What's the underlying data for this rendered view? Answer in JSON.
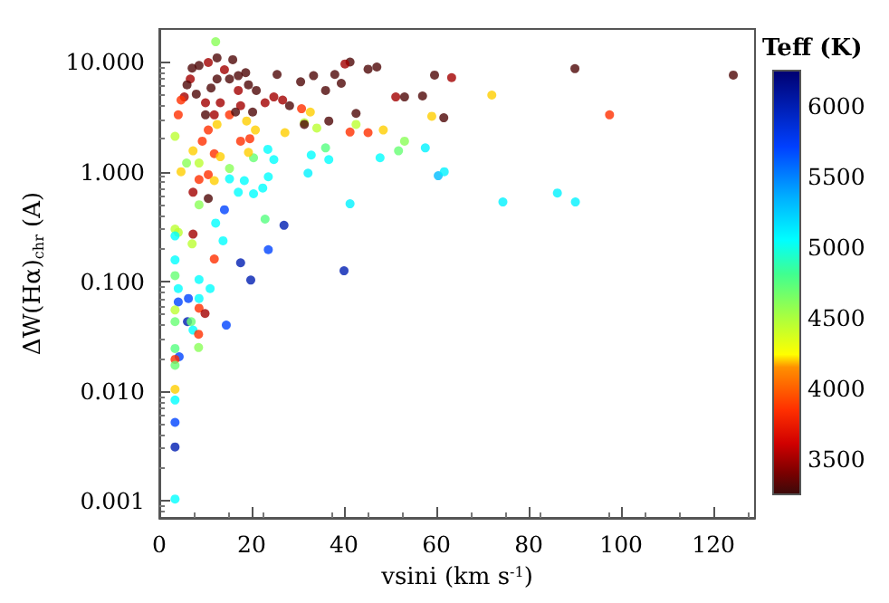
{
  "chart_data": {
    "type": "scatter",
    "xlabel": "vsini (km s$^{-1}$)",
    "ylabel": "ΔW(Hα)$_{chr}$ (A)",
    "clabel": "Teff (K)",
    "log": "y",
    "marker": "circle",
    "xlim": [
      0,
      129
    ],
    "ylim": [
      0.0007,
      20
    ],
    "xticks": [
      0,
      20,
      40,
      60,
      80,
      100,
      120
    ],
    "yticks": [
      {
        "value": 0.001,
        "label": "0.001"
      },
      {
        "value": 0.01,
        "label": "0.010"
      },
      {
        "value": 0.1,
        "label": "0.100"
      },
      {
        "value": 1,
        "label": "1.000"
      },
      {
        "value": 10,
        "label": "10.000"
      }
    ],
    "clim": [
      3250,
      6250
    ],
    "cticks": [
      3500,
      4000,
      4500,
      5000,
      5500,
      6000
    ],
    "x": [
      12.2,
      15.9,
      18.7,
      25.5,
      30.6,
      33.4,
      38,
      41.3,
      40.2,
      45.2,
      47.1,
      36,
      39.4,
      42.6,
      51.2,
      53.1,
      57,
      59.6,
      63.3,
      61.6,
      59,
      48.5,
      45.2,
      41.3,
      36.7,
      42.6,
      53.1,
      51.8,
      57.6,
      47.8,
      60.4,
      61.7,
      41.3,
      40,
      32.2,
      32.9,
      36,
      36.7,
      34.1,
      31.4,
      27.2,
      23.5,
      24.8,
      20.4,
      23.6,
      22.4,
      20.4,
      17.1,
      18.4,
      15.2,
      14.1,
      12.2,
      13.8,
      10.6,
      8.6,
      8.6,
      7.3,
      4.7,
      3.4,
      4.1,
      5.4,
      6.7,
      7.1,
      8.6,
      10.6,
      12.5,
      14.1,
      15.2,
      17.1,
      19.3,
      21,
      22.9,
      24.8,
      26.7,
      28.2,
      30.8,
      32.7,
      31.4,
      17.6,
      18.9,
      15.2,
      12.5,
      10.6,
      9.3,
      7.3,
      8.6,
      5.9,
      11.9,
      13.2,
      15.2,
      17.6,
      19.6,
      20.8,
      19.3,
      10.6,
      11.9,
      13.2,
      10,
      8,
      11.2,
      12.5,
      17.1,
      6,
      4.7,
      20.2,
      16.5,
      10,
      11.9,
      3.4,
      4.1,
      3.4,
      3.4,
      7.3,
      7.1,
      11.9,
      11,
      8.6,
      19.8,
      17.6,
      23.6,
      27,
      22.9,
      3.4,
      4.1,
      4.1,
      6.3,
      8.6,
      3.4,
      3.4,
      6.1,
      6.9,
      8.6,
      9.9,
      14.5,
      7.3,
      8.5,
      3.4,
      4.3,
      3.4,
      3.4,
      8.5,
      3.4,
      3.4,
      3.4,
      3.4,
      3.4,
      72,
      90,
      124.3,
      97.5,
      74.4,
      86.2,
      90.1
    ],
    "values": [
      15.3,
      10.5,
      8.0,
      7.7,
      6.6,
      7.5,
      7.7,
      10.0,
      9.6,
      8.6,
      9.0,
      5.5,
      6.4,
      3.4,
      4.8,
      4.8,
      4.9,
      7.6,
      7.2,
      3.1,
      3.2,
      2.4,
      2.27,
      2.3,
      2.9,
      2.7,
      1.9,
      1.55,
      1.65,
      1.34,
      0.92,
      1.0,
      0.51,
      0.125,
      0.97,
      1.42,
      1.65,
      1.29,
      2.5,
      2.8,
      2.27,
      1.6,
      1.29,
      1.34,
      0.9,
      0.71,
      0.63,
      0.65,
      0.83,
      0.86,
      0.45,
      0.34,
      0.235,
      0.57,
      0.5,
      0.85,
      0.65,
      1.0,
      2.1,
      3.3,
      4.8,
      7.0,
      8.8,
      9.3,
      9.9,
      10.9,
      8.5,
      7.0,
      5.5,
      6.2,
      5.5,
      4.25,
      4.8,
      4.5,
      4.0,
      3.75,
      3.5,
      2.7,
      4.0,
      2.9,
      3.3,
      2.7,
      2.4,
      1.9,
      1.55,
      1.2,
      1.2,
      1.46,
      1.37,
      1.07,
      1.9,
      2.0,
      2.4,
      1.5,
      0.94,
      0.83,
      4.25,
      4.25,
      5.1,
      5.8,
      7.0,
      7.5,
      6.2,
      4.5,
      3.5,
      3.5,
      3.3,
      3.3,
      0.3,
      0.28,
      0.26,
      0.157,
      0.27,
      0.22,
      0.16,
      0.086,
      0.104,
      0.103,
      0.148,
      0.195,
      0.325,
      0.37,
      0.113,
      0.086,
      0.065,
      0.07,
      0.07,
      0.055,
      0.043,
      0.043,
      0.043,
      0.057,
      0.051,
      0.04,
      0.036,
      0.033,
      0.0245,
      0.0206,
      0.0195,
      0.0172,
      0.025,
      0.0104,
      0.0083,
      0.0052,
      0.0031,
      0.00104,
      5.0,
      8.7,
      7.6,
      3.3,
      0.53,
      0.64,
      0.53
    ],
    "cvalues": [
      4600,
      3300,
      3300,
      3300,
      3300,
      3300,
      3300,
      3300,
      3500,
      3300,
      3300,
      3300,
      3300,
      3300,
      3500,
      3300,
      3300,
      3300,
      3500,
      3300,
      4200,
      4200,
      3850,
      3850,
      3300,
      4450,
      4600,
      4700,
      5100,
      5050,
      5300,
      5100,
      5100,
      6000,
      5100,
      5050,
      4750,
      5050,
      4450,
      4450,
      4200,
      5050,
      5050,
      4700,
      5050,
      5050,
      5050,
      5050,
      5050,
      5050,
      5700,
      5050,
      5050,
      3300,
      4600,
      3850,
      3500,
      4200,
      4450,
      3850,
      3500,
      3500,
      3300,
      3300,
      3500,
      3300,
      3500,
      3300,
      3500,
      3300,
      3300,
      3500,
      3500,
      3500,
      3300,
      3850,
      4200,
      3300,
      3500,
      4200,
      3850,
      4200,
      3850,
      3850,
      4200,
      4450,
      4600,
      3850,
      4200,
      4600,
      3850,
      3850,
      4200,
      4200,
      3850,
      4200,
      3500,
      3500,
      3300,
      3300,
      3300,
      3300,
      3300,
      3850,
      3300,
      3300,
      3300,
      3500,
      4450,
      4450,
      5050,
      5050,
      3500,
      4450,
      3850,
      5050,
      5050,
      6000,
      6000,
      5700,
      6000,
      4750,
      4700,
      5050,
      5700,
      5700,
      5050,
      4450,
      4700,
      6000,
      4700,
      3850,
      3500,
      5700,
      5050,
      3850,
      4750,
      5700,
      3850,
      4700,
      4600,
      4200,
      5050,
      5700,
      6000,
      5050,
      4200,
      3300,
      3300,
      3850,
      5100,
      5100,
      5100
    ]
  }
}
